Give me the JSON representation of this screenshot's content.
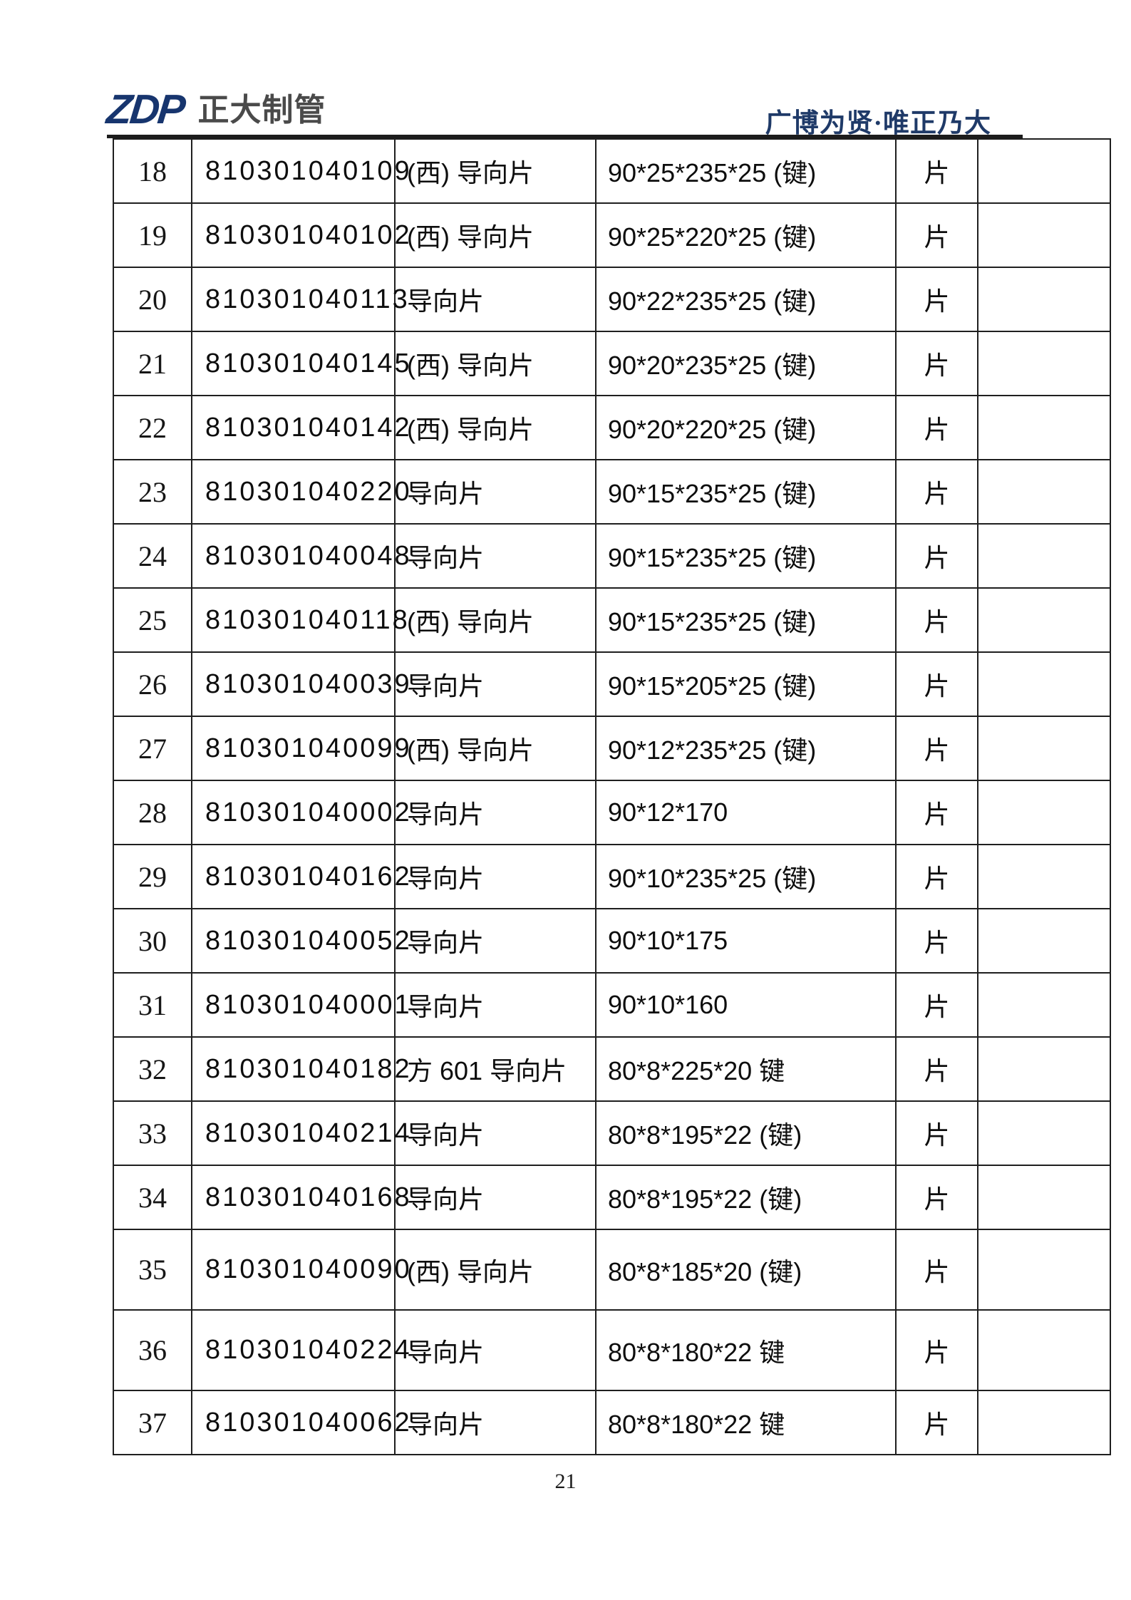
{
  "page": {
    "header": {
      "logo_mark": "ZDP",
      "logo_name": "正大制管",
      "slogan": "广博为贤·唯正乃大"
    },
    "table": {
      "rows": [
        {
          "no": "18",
          "code": "810301040109",
          "name": "(西) 导向片",
          "spec": "90*25*235*25 (键)",
          "unit": "片",
          "remark": ""
        },
        {
          "no": "19",
          "code": "810301040102",
          "name": "(西) 导向片",
          "spec": "90*25*220*25 (键)",
          "unit": "片",
          "remark": ""
        },
        {
          "no": "20",
          "code": "810301040113",
          "name": "导向片",
          "spec": "90*22*235*25 (键)",
          "unit": "片",
          "remark": ""
        },
        {
          "no": "21",
          "code": "810301040145",
          "name": "(西) 导向片",
          "spec": "90*20*235*25 (键)",
          "unit": "片",
          "remark": ""
        },
        {
          "no": "22",
          "code": "810301040142",
          "name": "(西) 导向片",
          "spec": "90*20*220*25 (键)",
          "unit": "片",
          "remark": ""
        },
        {
          "no": "23",
          "code": "810301040220",
          "name": "导向片",
          "spec": "90*15*235*25 (键)",
          "unit": "片",
          "remark": ""
        },
        {
          "no": "24",
          "code": "810301040048",
          "name": "导向片",
          "spec": "90*15*235*25 (键)",
          "unit": "片",
          "remark": ""
        },
        {
          "no": "25",
          "code": "810301040118",
          "name": "(西) 导向片",
          "spec": "90*15*235*25 (键)",
          "unit": "片",
          "remark": ""
        },
        {
          "no": "26",
          "code": "810301040039",
          "name": "导向片",
          "spec": "90*15*205*25 (键)",
          "unit": "片",
          "remark": ""
        },
        {
          "no": "27",
          "code": "810301040099",
          "name": "(西) 导向片",
          "spec": "90*12*235*25 (键)",
          "unit": "片",
          "remark": ""
        },
        {
          "no": "28",
          "code": "810301040002",
          "name": "导向片",
          "spec": "90*12*170",
          "unit": "片",
          "remark": ""
        },
        {
          "no": "29",
          "code": "810301040162",
          "name": "导向片",
          "spec": "90*10*235*25 (键)",
          "unit": "片",
          "remark": ""
        },
        {
          "no": "30",
          "code": "810301040052",
          "name": "导向片",
          "spec": "90*10*175",
          "unit": "片",
          "remark": ""
        },
        {
          "no": "31",
          "code": "810301040001",
          "name": "导向片",
          "spec": "90*10*160",
          "unit": "片",
          "remark": ""
        },
        {
          "no": "32",
          "code": "810301040182",
          "name": "方 601 导向片",
          "spec": "80*8*225*20 键",
          "unit": "片",
          "remark": ""
        },
        {
          "no": "33",
          "code": "810301040214",
          "name": "导向片",
          "spec": "80*8*195*22 (键)",
          "unit": "片",
          "remark": ""
        },
        {
          "no": "34",
          "code": "810301040168",
          "name": "导向片",
          "spec": "80*8*195*22 (键)",
          "unit": "片",
          "remark": ""
        },
        {
          "no": "35",
          "code": "810301040090",
          "name": "(西) 导向片",
          "spec": "80*8*185*20 (键)",
          "unit": "片",
          "remark": ""
        },
        {
          "no": "36",
          "code": "810301040224",
          "name": "导向片",
          "spec": "80*8*180*22 键",
          "unit": "片",
          "remark": ""
        },
        {
          "no": "37",
          "code": "810301040062",
          "name": "导向片",
          "spec": "80*8*180*22 键",
          "unit": "片",
          "remark": ""
        }
      ]
    },
    "footer": {
      "page_number": "21"
    }
  },
  "colors": {
    "logo_blue": "#17356e",
    "logo_gray": "#4a4a4a",
    "slogan_blue": "#1f3a68",
    "grid_line": "#1f1f1f"
  }
}
